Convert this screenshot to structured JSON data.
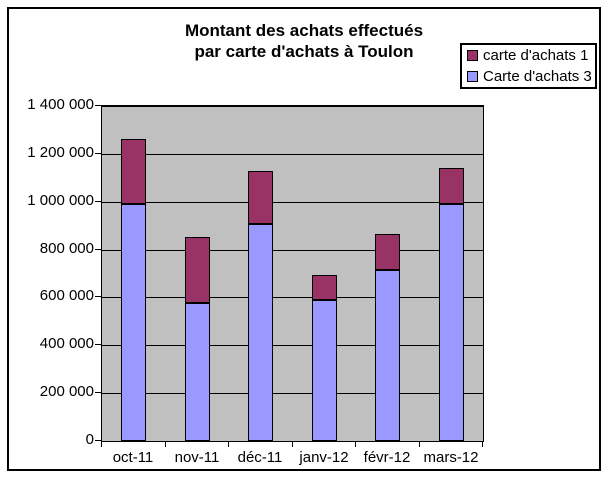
{
  "title": {
    "line1": "Montant des achats effectués",
    "line2": "par carte d'achats à Toulon"
  },
  "legend": {
    "items": [
      {
        "label": "carte d'achats 1",
        "color": "#993366"
      },
      {
        "label": "Carte d'achats 3",
        "color": "#9999FF"
      }
    ]
  },
  "colors": {
    "plot_background": "#C0C0C0",
    "series_carte1": "#993366",
    "series_carte3": "#9999FF",
    "chart_background": "#FFFFFF",
    "border": "#000000"
  },
  "chart_data": {
    "type": "bar",
    "stacked": true,
    "title": "Montant des achats effectués par carte d'achats à Toulon",
    "categories": [
      "oct-11",
      "nov-11",
      "déc-11",
      "janv-12",
      "févr-12",
      "mars-12"
    ],
    "series": [
      {
        "name": "Carte d'achats 3",
        "color": "#9999FF",
        "values": [
          990000,
          575000,
          905000,
          590000,
          715000,
          990000
        ]
      },
      {
        "name": "carte d'achats 1",
        "color": "#993366",
        "values": [
          270000,
          275000,
          220000,
          105000,
          150000,
          150000
        ]
      }
    ],
    "stack_totals": [
      1260000,
      850000,
      1125000,
      695000,
      865000,
      1140000
    ],
    "xlabel": "",
    "ylabel": "",
    "ylim": [
      0,
      1400000
    ],
    "ytick_step": 200000,
    "ytick_labels": [
      "0",
      "200 000",
      "400 000",
      "600 000",
      "800 000",
      "1 000 000",
      "1 200 000",
      "1 400 000"
    ],
    "grid": true,
    "legend_position": "top-right",
    "legend_order": [
      "carte d'achats 1",
      "Carte d'achats 3"
    ]
  }
}
